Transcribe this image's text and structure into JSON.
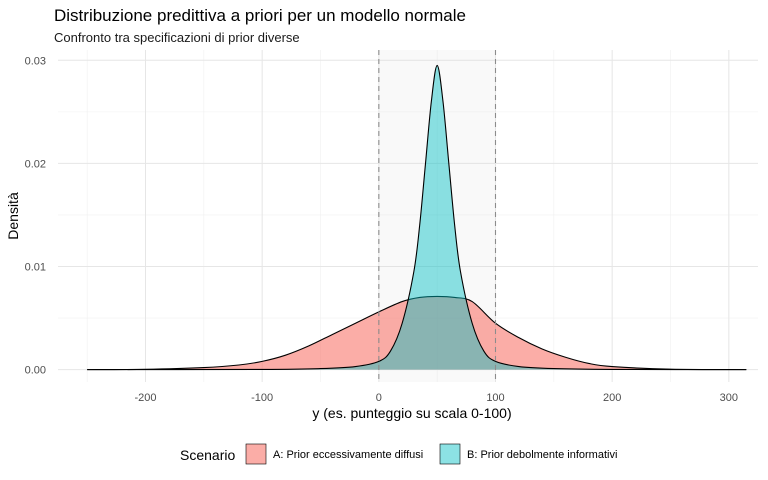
{
  "chart_data": {
    "type": "area",
    "title": "Distribuzione predittiva a priori per un modello normale",
    "subtitle": "Confronto tra specificazioni di prior diverse",
    "xlabel": "y (es. punteggio su scala 0-100)",
    "ylabel": "Densità",
    "xlim": [
      -275,
      325
    ],
    "ylim": [
      -0.0012,
      0.031
    ],
    "x_ticks": [
      -200,
      -100,
      0,
      100,
      200,
      300
    ],
    "y_ticks": [
      0.0,
      0.01,
      0.02,
      0.03
    ],
    "x_tick_labels": [
      "-200",
      "-100",
      "0",
      "100",
      "200",
      "300"
    ],
    "y_tick_labels": [
      "0.00",
      "0.01",
      "0.02",
      "0.03"
    ],
    "grid": true,
    "shaded_region": [
      0,
      100
    ],
    "reference_lines_x": [
      0,
      100
    ],
    "legend_title": "Scenario",
    "legend_position": "bottom",
    "series": [
      {
        "name": "A: Prior eccessivamente diffusi",
        "color": "#F8766D",
        "x": [
          -250,
          -200,
          -150,
          -120,
          -100,
          -80,
          -60,
          -40,
          -20,
          0,
          20,
          35,
          50,
          65,
          80,
          100,
          120,
          140,
          160,
          180,
          200,
          250,
          315
        ],
        "y": [
          0.0,
          3e-05,
          0.0002,
          0.00045,
          0.0008,
          0.0014,
          0.0023,
          0.0034,
          0.0045,
          0.0056,
          0.0066,
          0.007,
          0.0071,
          0.007,
          0.0066,
          0.0045,
          0.0031,
          0.002,
          0.0012,
          0.0006,
          0.0003,
          4e-05,
          0.0
        ]
      },
      {
        "name": "B: Prior debolmente informativi",
        "color": "#00BFC4",
        "x": [
          -250,
          -100,
          -50,
          -20,
          0,
          10,
          20,
          30,
          35,
          40,
          45,
          50,
          55,
          60,
          65,
          70,
          80,
          90,
          100,
          120,
          150,
          200,
          315
        ],
        "y": [
          0.0,
          2e-05,
          0.0001,
          0.0003,
          0.0008,
          0.0018,
          0.0045,
          0.0095,
          0.014,
          0.02,
          0.026,
          0.0295,
          0.026,
          0.02,
          0.014,
          0.0095,
          0.0045,
          0.0018,
          0.0008,
          0.0003,
          0.0001,
          2e-05,
          0.0
        ]
      }
    ]
  }
}
